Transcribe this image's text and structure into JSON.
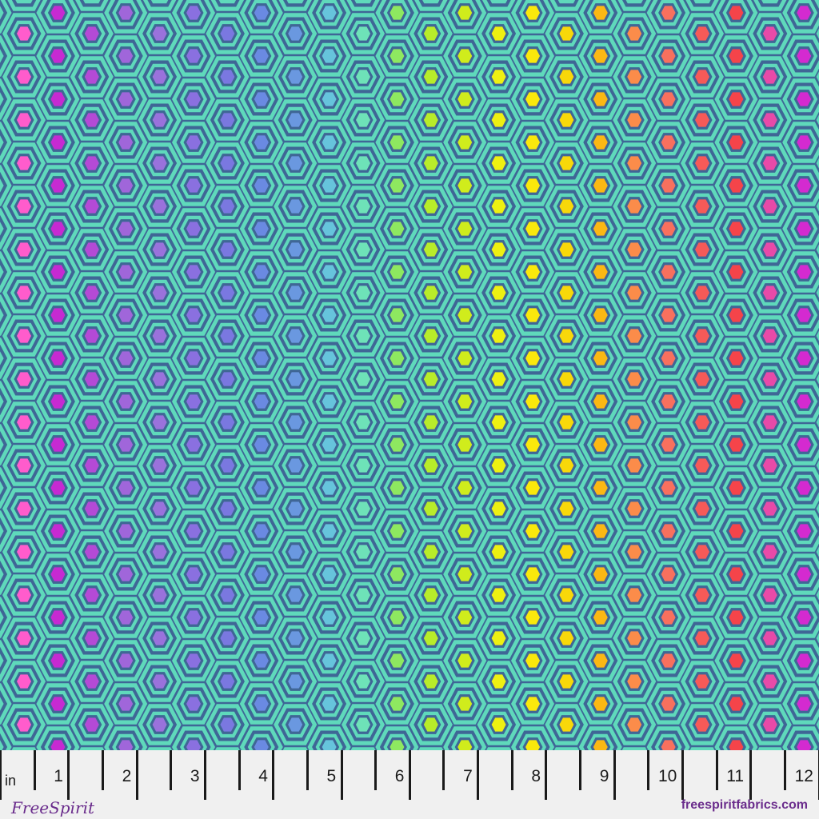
{
  "colors": {
    "ring_light": "#5fd9bb",
    "ring_dark": "#3f6696",
    "center_by_column": [
      "#ff5ccc",
      "#c62ad2",
      "#b44ad6",
      "#a066da",
      "#9a72dc",
      "#8a70e0",
      "#7a78e0",
      "#6a8ae2",
      "#6a98e0",
      "#66c4dc",
      "#6ee2b8",
      "#8ee860",
      "#b8ec2a",
      "#d0ec1c",
      "#eef012",
      "#fae80c",
      "#f8d80a",
      "#fbb814",
      "#fb8c4a",
      "#f8705e",
      "#f65a58",
      "#f5444a",
      "#e84aa8",
      "#d42ad0"
    ]
  },
  "ruler": {
    "unit": "in",
    "labels": [
      "1",
      "2",
      "3",
      "4",
      "5",
      "6",
      "7",
      "8",
      "9",
      "10",
      "11",
      "12"
    ]
  },
  "brand": {
    "logo": "FreeSpirit",
    "website": "freespiritfabrics.com"
  }
}
